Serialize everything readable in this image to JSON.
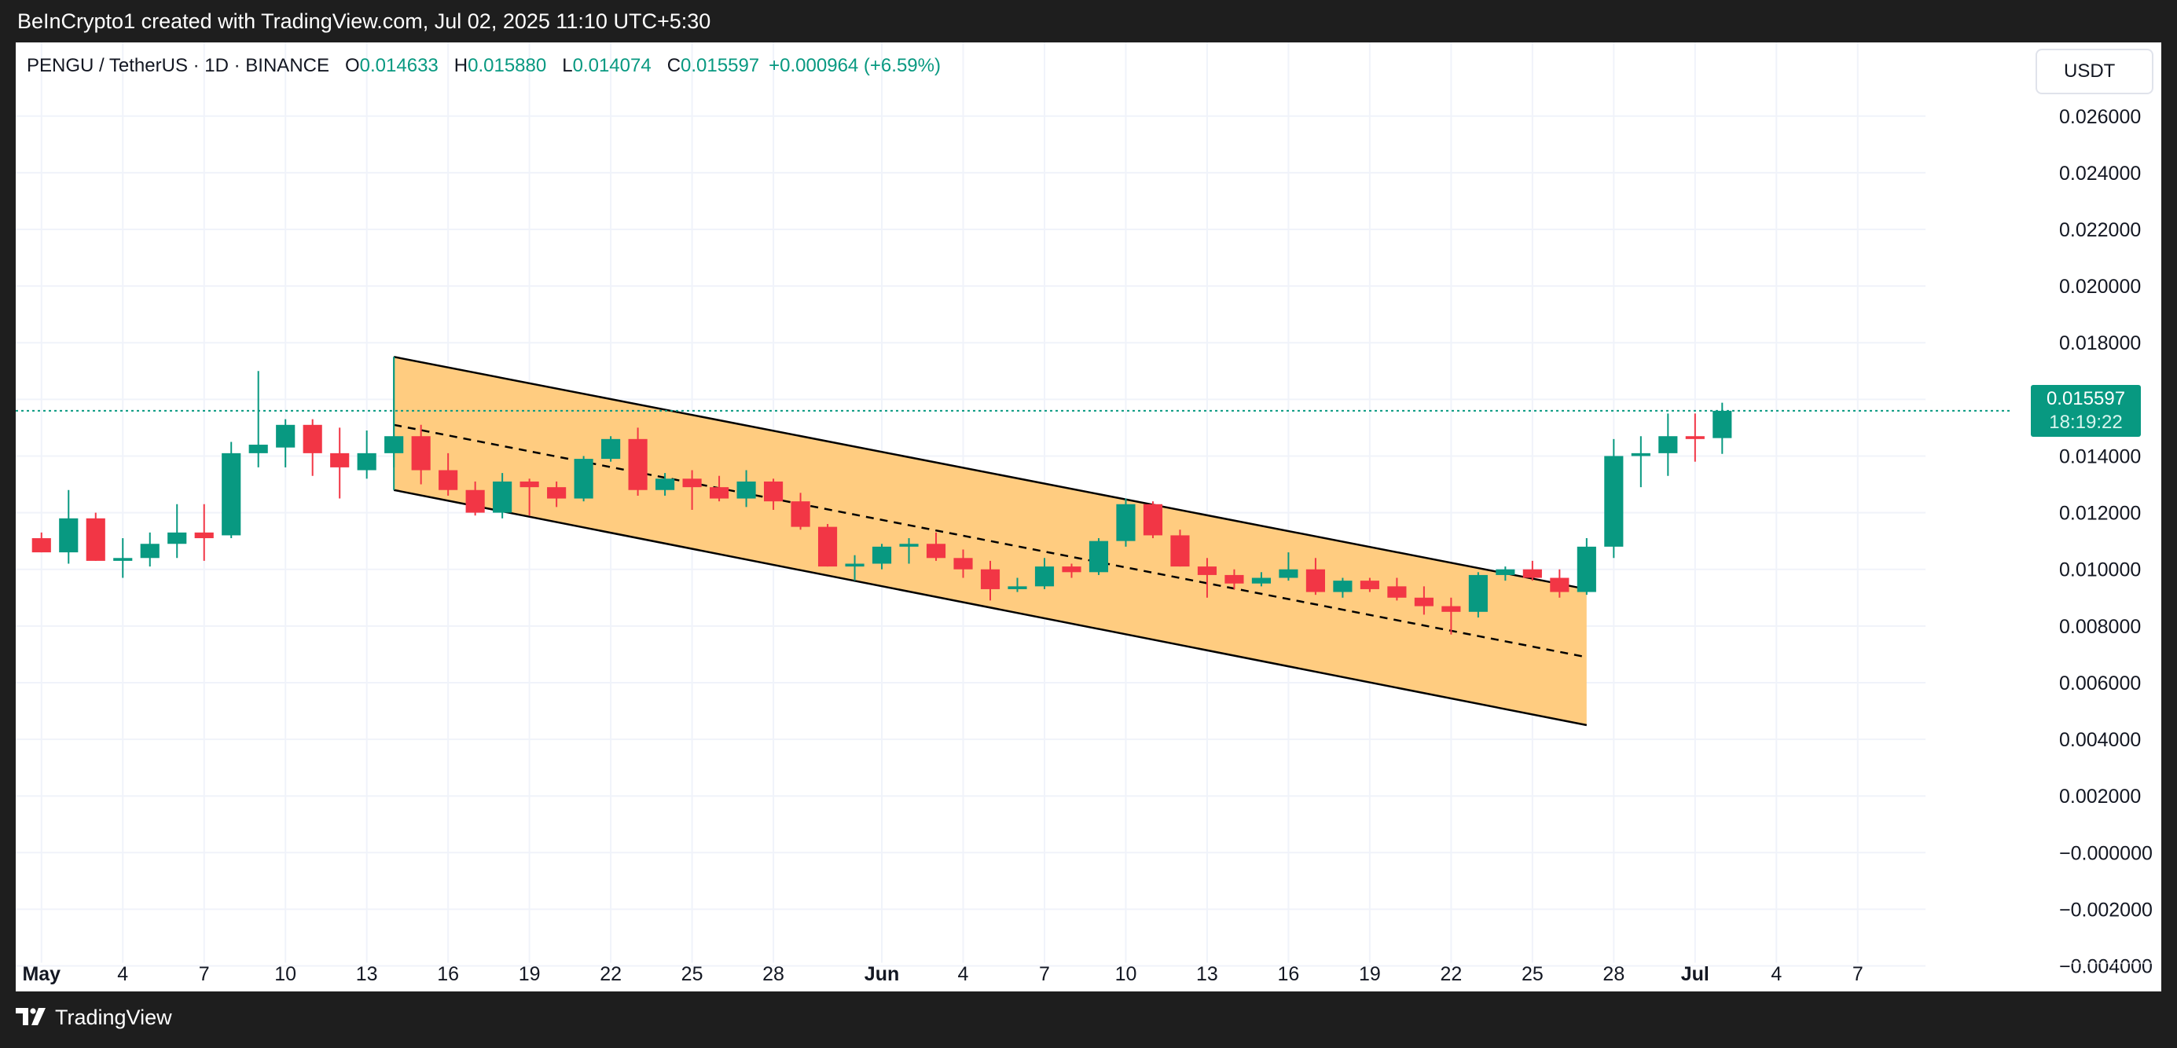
{
  "header": {
    "attribution": "BeInCrypto1 created with TradingView.com, Jul 02, 2025 11:10 UTC+5:30"
  },
  "footer": {
    "brand": "TradingView"
  },
  "colors": {
    "up": "#089981",
    "down": "#f23645",
    "channel_fill": "#ffcc80"
  },
  "chart_data": {
    "type": "candlestick",
    "title": "PENGU / TetherUS · 1D · BINANCE",
    "ohlc": {
      "o_label": "O",
      "o": "0.014633",
      "h_label": "H",
      "h": "0.015880",
      "l_label": "L",
      "l": "0.014074",
      "c_label": "C",
      "c": "0.015597",
      "change": "+0.000964 (+6.59%)"
    },
    "currency": "USDT",
    "last_price": "0.015597",
    "countdown": "18:19:22",
    "last_price_value": 0.015597,
    "ylim": [
      -0.0049,
      0.0286
    ],
    "y_ticks": [
      {
        "value": 0.026,
        "label": "0.026000"
      },
      {
        "value": 0.024,
        "label": "0.024000"
      },
      {
        "value": 0.022,
        "label": "0.022000"
      },
      {
        "value": 0.02,
        "label": "0.020000"
      },
      {
        "value": 0.018,
        "label": "0.018000"
      },
      {
        "value": 0.016,
        "label": "0.016000"
      },
      {
        "value": 0.014,
        "label": "0.014000"
      },
      {
        "value": 0.012,
        "label": "0.012000"
      },
      {
        "value": 0.01,
        "label": "0.010000"
      },
      {
        "value": 0.008,
        "label": "0.008000"
      },
      {
        "value": 0.006,
        "label": "0.006000"
      },
      {
        "value": 0.004,
        "label": "0.004000"
      },
      {
        "value": 0.002,
        "label": "0.002000"
      },
      {
        "value": 0.0,
        "label": "−0.000000"
      },
      {
        "value": -0.002,
        "label": "−0.002000"
      },
      {
        "value": -0.004,
        "label": "−0.004000"
      }
    ],
    "x_ticks": [
      {
        "day": 1,
        "label": "May",
        "bold": true
      },
      {
        "day": 4,
        "label": "4"
      },
      {
        "day": 7,
        "label": "7"
      },
      {
        "day": 10,
        "label": "10"
      },
      {
        "day": 13,
        "label": "13"
      },
      {
        "day": 16,
        "label": "16"
      },
      {
        "day": 19,
        "label": "19"
      },
      {
        "day": 22,
        "label": "22"
      },
      {
        "day": 25,
        "label": "25"
      },
      {
        "day": 28,
        "label": "28"
      },
      {
        "day": 32,
        "label": "Jun",
        "bold": true
      },
      {
        "day": 35,
        "label": "4"
      },
      {
        "day": 38,
        "label": "7"
      },
      {
        "day": 41,
        "label": "10"
      },
      {
        "day": 44,
        "label": "13"
      },
      {
        "day": 47,
        "label": "16"
      },
      {
        "day": 50,
        "label": "19"
      },
      {
        "day": 53,
        "label": "22"
      },
      {
        "day": 56,
        "label": "25"
      },
      {
        "day": 59,
        "label": "28"
      },
      {
        "day": 62,
        "label": "Jul",
        "bold": true
      },
      {
        "day": 65,
        "label": "4"
      },
      {
        "day": 68,
        "label": "7"
      }
    ],
    "x_range": [
      0.05,
      70.5
    ],
    "candles": [
      {
        "day": 1,
        "o": 0.0111,
        "h": 0.0113,
        "l": 0.0106,
        "c": 0.0106
      },
      {
        "day": 2,
        "o": 0.0106,
        "h": 0.0128,
        "l": 0.0102,
        "c": 0.0118
      },
      {
        "day": 3,
        "o": 0.0118,
        "h": 0.012,
        "l": 0.0103,
        "c": 0.0103
      },
      {
        "day": 4,
        "o": 0.0103,
        "h": 0.0111,
        "l": 0.0097,
        "c": 0.0104
      },
      {
        "day": 5,
        "o": 0.0104,
        "h": 0.0113,
        "l": 0.0101,
        "c": 0.0109
      },
      {
        "day": 6,
        "o": 0.0109,
        "h": 0.0123,
        "l": 0.0104,
        "c": 0.0113
      },
      {
        "day": 7,
        "o": 0.0113,
        "h": 0.0123,
        "l": 0.0103,
        "c": 0.0111
      },
      {
        "day": 8,
        "o": 0.0112,
        "h": 0.0145,
        "l": 0.0111,
        "c": 0.0141
      },
      {
        "day": 9,
        "o": 0.0141,
        "h": 0.017,
        "l": 0.0136,
        "c": 0.0144
      },
      {
        "day": 10,
        "o": 0.0143,
        "h": 0.0153,
        "l": 0.0136,
        "c": 0.0151
      },
      {
        "day": 11,
        "o": 0.0151,
        "h": 0.0153,
        "l": 0.0133,
        "c": 0.0141
      },
      {
        "day": 12,
        "o": 0.0141,
        "h": 0.015,
        "l": 0.0125,
        "c": 0.0136
      },
      {
        "day": 13,
        "o": 0.0135,
        "h": 0.0149,
        "l": 0.0132,
        "c": 0.0141
      },
      {
        "day": 14,
        "o": 0.0141,
        "h": 0.0175,
        "l": 0.0136,
        "c": 0.0147
      },
      {
        "day": 15,
        "o": 0.0147,
        "h": 0.0151,
        "l": 0.013,
        "c": 0.0135
      },
      {
        "day": 16,
        "o": 0.0135,
        "h": 0.0141,
        "l": 0.0126,
        "c": 0.0128
      },
      {
        "day": 17,
        "o": 0.0128,
        "h": 0.0131,
        "l": 0.0119,
        "c": 0.012
      },
      {
        "day": 18,
        "o": 0.012,
        "h": 0.0134,
        "l": 0.0118,
        "c": 0.0131
      },
      {
        "day": 19,
        "o": 0.0131,
        "h": 0.0132,
        "l": 0.0119,
        "c": 0.0129
      },
      {
        "day": 20,
        "o": 0.0129,
        "h": 0.0131,
        "l": 0.0122,
        "c": 0.0125
      },
      {
        "day": 21,
        "o": 0.0125,
        "h": 0.014,
        "l": 0.0124,
        "c": 0.0139
      },
      {
        "day": 22,
        "o": 0.0139,
        "h": 0.0147,
        "l": 0.0138,
        "c": 0.0146
      },
      {
        "day": 23,
        "o": 0.0146,
        "h": 0.015,
        "l": 0.0126,
        "c": 0.0128
      },
      {
        "day": 24,
        "o": 0.0128,
        "h": 0.0134,
        "l": 0.0126,
        "c": 0.0132
      },
      {
        "day": 25,
        "o": 0.0132,
        "h": 0.0135,
        "l": 0.0121,
        "c": 0.0129
      },
      {
        "day": 26,
        "o": 0.0129,
        "h": 0.0133,
        "l": 0.0124,
        "c": 0.0125
      },
      {
        "day": 27,
        "o": 0.0125,
        "h": 0.0135,
        "l": 0.0122,
        "c": 0.0131
      },
      {
        "day": 28,
        "o": 0.0131,
        "h": 0.0132,
        "l": 0.0121,
        "c": 0.0124
      },
      {
        "day": 29,
        "o": 0.0124,
        "h": 0.0127,
        "l": 0.0114,
        "c": 0.0115
      },
      {
        "day": 30,
        "o": 0.0115,
        "h": 0.0116,
        "l": 0.0101,
        "c": 0.0101
      },
      {
        "day": 31,
        "o": 0.0101,
        "h": 0.0105,
        "l": 0.0096,
        "c": 0.0102
      },
      {
        "day": 32,
        "o": 0.0102,
        "h": 0.0109,
        "l": 0.01,
        "c": 0.0108
      },
      {
        "day": 33,
        "o": 0.0108,
        "h": 0.0111,
        "l": 0.0102,
        "c": 0.0109
      },
      {
        "day": 34,
        "o": 0.0109,
        "h": 0.0113,
        "l": 0.0103,
        "c": 0.0104
      },
      {
        "day": 35,
        "o": 0.0104,
        "h": 0.0107,
        "l": 0.0097,
        "c": 0.01
      },
      {
        "day": 36,
        "o": 0.01,
        "h": 0.0103,
        "l": 0.0089,
        "c": 0.0093
      },
      {
        "day": 37,
        "o": 0.0093,
        "h": 0.0097,
        "l": 0.0092,
        "c": 0.0094
      },
      {
        "day": 38,
        "o": 0.0094,
        "h": 0.0104,
        "l": 0.0093,
        "c": 0.0101
      },
      {
        "day": 39,
        "o": 0.0101,
        "h": 0.0102,
        "l": 0.0097,
        "c": 0.0099
      },
      {
        "day": 40,
        "o": 0.0099,
        "h": 0.0111,
        "l": 0.0098,
        "c": 0.011
      },
      {
        "day": 41,
        "o": 0.011,
        "h": 0.0125,
        "l": 0.0108,
        "c": 0.0123
      },
      {
        "day": 42,
        "o": 0.0123,
        "h": 0.0124,
        "l": 0.0111,
        "c": 0.0112
      },
      {
        "day": 43,
        "o": 0.0112,
        "h": 0.0114,
        "l": 0.0101,
        "c": 0.0101
      },
      {
        "day": 44,
        "o": 0.0101,
        "h": 0.0104,
        "l": 0.009,
        "c": 0.0098
      },
      {
        "day": 45,
        "o": 0.0098,
        "h": 0.01,
        "l": 0.0093,
        "c": 0.0095
      },
      {
        "day": 46,
        "o": 0.0095,
        "h": 0.0099,
        "l": 0.0094,
        "c": 0.0097
      },
      {
        "day": 47,
        "o": 0.0097,
        "h": 0.0106,
        "l": 0.0096,
        "c": 0.01
      },
      {
        "day": 48,
        "o": 0.01,
        "h": 0.0104,
        "l": 0.0091,
        "c": 0.0092
      },
      {
        "day": 49,
        "o": 0.0092,
        "h": 0.0097,
        "l": 0.009,
        "c": 0.0096
      },
      {
        "day": 50,
        "o": 0.0096,
        "h": 0.0097,
        "l": 0.0092,
        "c": 0.0093
      },
      {
        "day": 51,
        "o": 0.0094,
        "h": 0.0097,
        "l": 0.0089,
        "c": 0.009
      },
      {
        "day": 52,
        "o": 0.009,
        "h": 0.0094,
        "l": 0.0084,
        "c": 0.0087
      },
      {
        "day": 53,
        "o": 0.0087,
        "h": 0.009,
        "l": 0.0077,
        "c": 0.0085
      },
      {
        "day": 54,
        "o": 0.0085,
        "h": 0.0099,
        "l": 0.0083,
        "c": 0.0098
      },
      {
        "day": 55,
        "o": 0.0098,
        "h": 0.0101,
        "l": 0.0096,
        "c": 0.01
      },
      {
        "day": 56,
        "o": 0.01,
        "h": 0.0103,
        "l": 0.0096,
        "c": 0.0097
      },
      {
        "day": 57,
        "o": 0.0097,
        "h": 0.01,
        "l": 0.009,
        "c": 0.0092
      },
      {
        "day": 58,
        "o": 0.0092,
        "h": 0.0111,
        "l": 0.0091,
        "c": 0.0108
      },
      {
        "day": 59,
        "o": 0.0108,
        "h": 0.0146,
        "l": 0.0104,
        "c": 0.014
      },
      {
        "day": 60,
        "o": 0.014,
        "h": 0.0147,
        "l": 0.0129,
        "c": 0.0141
      },
      {
        "day": 61,
        "o": 0.0141,
        "h": 0.0155,
        "l": 0.0133,
        "c": 0.0147
      },
      {
        "day": 62,
        "o": 0.0147,
        "h": 0.0155,
        "l": 0.0138,
        "c": 0.0146
      },
      {
        "day": 63,
        "o": 0.014633,
        "h": 0.01588,
        "l": 0.014074,
        "c": 0.015597
      }
    ],
    "annotations": {
      "channel_upper": [
        {
          "day": 14,
          "value": 0.0175
        },
        {
          "day": 58,
          "value": 0.0093
        }
      ],
      "channel_lower": [
        {
          "day": 14,
          "value": 0.0128
        },
        {
          "day": 58,
          "value": 0.0045
        }
      ],
      "channel_mid": [
        {
          "day": 14,
          "value": 0.0151
        },
        {
          "day": 58,
          "value": 0.0069
        }
      ]
    }
  }
}
